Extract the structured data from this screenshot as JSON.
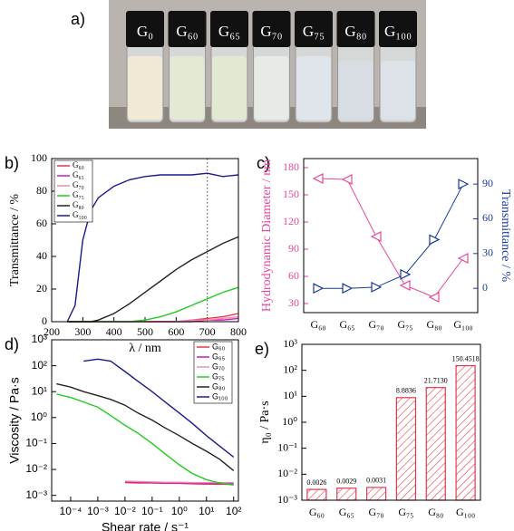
{
  "photo": {
    "panel_label": "a)",
    "vials": [
      "G₀",
      "G₆₀",
      "G₆₅",
      "G₇₀",
      "G₇₅",
      "G₈₀",
      "G₁₀₀"
    ]
  },
  "chart_data": [
    {
      "type": "line",
      "panel_label": "b)",
      "x_label": "λ / nm",
      "y_label": "Transmittance / %",
      "x": [
        250,
        275,
        300,
        325,
        350,
        400,
        450,
        500,
        550,
        600,
        650,
        700,
        750,
        800
      ],
      "xlim": [
        200,
        800
      ],
      "xticks": [
        200,
        300,
        400,
        500,
        600,
        700,
        800
      ],
      "ylim": [
        0,
        100
      ],
      "yticks": [
        0,
        20,
        40,
        60,
        80,
        100
      ],
      "vline": 700,
      "legend": "upper-left",
      "series": [
        {
          "name": "G₆₀",
          "color": "#e8364a",
          "values": [
            0,
            0,
            0,
            0,
            0,
            0,
            0,
            0,
            0,
            0,
            1,
            2,
            3,
            5
          ]
        },
        {
          "name": "G₆₅",
          "color": "#c020c0",
          "values": [
            0,
            0,
            0,
            0,
            0,
            0,
            0,
            0,
            0,
            0,
            0,
            1,
            1,
            2
          ]
        },
        {
          "name": "G₇₀",
          "color": "#f08aa8",
          "values": [
            0,
            0,
            0,
            0,
            0,
            0,
            0,
            0,
            0,
            0,
            1,
            1,
            2,
            3
          ]
        },
        {
          "name": "G₇₅",
          "color": "#22cc22",
          "values": [
            0,
            0,
            0,
            0,
            0,
            0,
            0,
            1,
            3,
            6,
            10,
            14,
            18,
            21
          ]
        },
        {
          "name": "G₈₀",
          "color": "#222222",
          "values": [
            0,
            0,
            0,
            0,
            1,
            5,
            11,
            18,
            25,
            32,
            38,
            43,
            48,
            52
          ]
        },
        {
          "name": "G₁₀₀",
          "color": "#1a1a8c",
          "values": [
            0,
            10,
            50,
            68,
            76,
            83,
            87,
            89,
            90,
            90,
            90,
            91,
            89,
            90
          ]
        }
      ]
    },
    {
      "type": "dual",
      "panel_label": "c)",
      "y_label": "Hydrodynamic Diameter / nm",
      "y2_label": "Transmittance / %",
      "categories": [
        "G₆₀",
        "G₆₅",
        "G₇₀",
        "G₇₅",
        "G₈₀",
        "G₁₀₀"
      ],
      "ylim": [
        20,
        190
      ],
      "yticks": [
        30,
        60,
        90,
        120,
        150,
        180
      ],
      "ycolor": "#e8459a",
      "y2lim": [
        -21,
        112
      ],
      "y2ticks": [
        0,
        30,
        60,
        90
      ],
      "y2color": "#1a3a9c",
      "series": [
        {
          "name": "Hydrodynamic Diameter",
          "color": "#e8459a",
          "marker": "triangle-left",
          "values": [
            168,
            167,
            104,
            50,
            37,
            80
          ]
        },
        {
          "name": "Transmittance",
          "color": "#1a3a9c",
          "marker": "triangle-right",
          "axis": "y2",
          "values": [
            0,
            0,
            1,
            12,
            42,
            90
          ]
        }
      ]
    },
    {
      "type": "line",
      "panel_label": "d)",
      "x_label": "Shear rate / s⁻¹",
      "y_label": "Viscosity / Pa·s",
      "xlog": true,
      "ylog": true,
      "legend": "upper-right",
      "x": [
        3e-05,
        0.0001,
        0.0003,
        0.001,
        0.003,
        0.01,
        0.03,
        0.1,
        0.3,
        1,
        3,
        10,
        30,
        100
      ],
      "xlim": [
        2e-05,
        150
      ],
      "xticks": [
        {
          "value": 0.0001,
          "label": "10⁻⁴"
        },
        {
          "value": 0.001,
          "label": "10⁻³"
        },
        {
          "value": 0.01,
          "label": "10⁻²"
        },
        {
          "value": 0.1,
          "label": "10⁻¹"
        },
        {
          "value": 1,
          "label": "10⁰"
        },
        {
          "value": 10,
          "label": "10¹"
        },
        {
          "value": 100,
          "label": "10²"
        }
      ],
      "ylim": [
        0.0006,
        1000
      ],
      "yticks": [
        {
          "value": 0.001,
          "label": "10⁻³"
        },
        {
          "value": 0.01,
          "label": "10⁻²"
        },
        {
          "value": 0.1,
          "label": "10⁻¹"
        },
        {
          "value": 1,
          "label": "10⁰"
        },
        {
          "value": 10,
          "label": "10¹"
        },
        {
          "value": 100,
          "label": "10²"
        },
        {
          "value": 1000,
          "label": "10³"
        }
      ],
      "series": [
        {
          "name": "G₆₀",
          "color": "#e8364a",
          "values": [
            null,
            null,
            null,
            null,
            null,
            0.0031,
            0.003,
            0.003,
            0.0029,
            0.0029,
            0.0028,
            0.0027,
            0.0027,
            0.0026
          ]
        },
        {
          "name": "G₆₅",
          "color": "#c020c0",
          "values": [
            null,
            null,
            null,
            null,
            null,
            0.0033,
            0.0032,
            0.0031,
            0.003,
            0.003,
            0.0029,
            0.0029,
            0.0029,
            0.0029
          ]
        },
        {
          "name": "G₇₀",
          "color": "#f08aa8",
          "values": [
            null,
            null,
            null,
            null,
            null,
            0.0035,
            0.0034,
            0.0033,
            0.0032,
            0.0032,
            0.0031,
            0.0031,
            0.0031,
            0.0031
          ]
        },
        {
          "name": "G₇₅",
          "color": "#22cc22",
          "values": [
            8,
            6,
            4,
            2.5,
            1.2,
            0.5,
            0.25,
            0.1,
            0.04,
            0.015,
            0.007,
            0.004,
            0.003,
            0.0025
          ]
        },
        {
          "name": "G₈₀",
          "color": "#222222",
          "values": [
            20,
            15,
            10,
            7,
            5,
            3,
            1.5,
            0.8,
            0.4,
            0.2,
            0.1,
            0.05,
            0.025,
            0.009
          ]
        },
        {
          "name": "G₁₀₀",
          "color": "#1a1a8c",
          "values": [
            null,
            null,
            150,
            180,
            150,
            60,
            25,
            10,
            4,
            1.5,
            0.6,
            0.2,
            0.08,
            0.03
          ]
        }
      ]
    },
    {
      "type": "bar",
      "panel_label": "e)",
      "y_label": "η₀ / Pa·s",
      "ylog": true,
      "color": "#e8364a",
      "categories": [
        "G₆₀",
        "G₆₅",
        "G₇₀",
        "G₇₅",
        "G₈₀",
        "G₁₀₀"
      ],
      "values": [
        0.0026,
        0.0029,
        0.0031,
        8.8836,
        21.713,
        150.4518
      ],
      "value_labels": [
        "0.0026",
        "0.0029",
        "0.0031",
        "8.8836",
        "21.7130",
        "150.4518"
      ],
      "ylim": [
        0.001,
        1000
      ],
      "yticks": [
        {
          "value": 0.001,
          "label": "10⁻³"
        },
        {
          "value": 0.01,
          "label": "10⁻²"
        },
        {
          "value": 0.1,
          "label": "10⁻¹"
        },
        {
          "value": 1,
          "label": "10⁰"
        },
        {
          "value": 10,
          "label": "10¹"
        },
        {
          "value": 100,
          "label": "10²"
        },
        {
          "value": 1000,
          "label": "10³"
        }
      ]
    }
  ]
}
